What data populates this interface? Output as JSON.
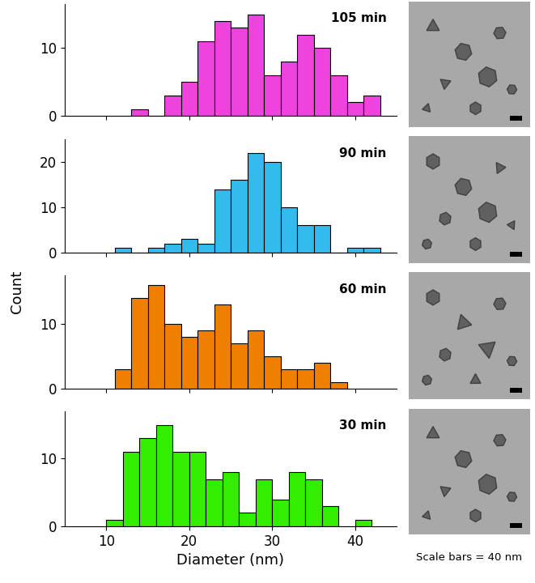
{
  "chart_data": [
    {
      "type": "histogram",
      "title": "105 min",
      "color": "#ee44dd",
      "bins": [
        13,
        15,
        17,
        19,
        21,
        23,
        25,
        27,
        29,
        31,
        33,
        35,
        37,
        39,
        41,
        43
      ],
      "counts": [
        1,
        0,
        3,
        5,
        11,
        14,
        13,
        15,
        6,
        8,
        12,
        10,
        6,
        2,
        3
      ],
      "xlim": [
        5,
        45
      ],
      "xticks": [
        10,
        20,
        30,
        40
      ],
      "ylim": [
        0,
        16.5
      ],
      "yticks": [
        0,
        10
      ],
      "tick_labels": "y"
    },
    {
      "type": "histogram",
      "title": "90 min",
      "color": "#33bbee",
      "bins": [
        11,
        13,
        15,
        17,
        19,
        21,
        23,
        25,
        27,
        29,
        31,
        33,
        35,
        37,
        39,
        41,
        43
      ],
      "counts": [
        1,
        0,
        1,
        2,
        3,
        2,
        14,
        16,
        22,
        20,
        10,
        6,
        6,
        0,
        1,
        1
      ],
      "xlim": [
        5,
        45
      ],
      "xticks": [
        10,
        20,
        30,
        40
      ],
      "ylim": [
        0,
        25
      ],
      "yticks": [
        0,
        10,
        20
      ],
      "tick_labels": "y"
    },
    {
      "type": "histogram",
      "title": "60 min",
      "color": "#ee7f00",
      "bins": [
        11,
        13,
        15,
        17,
        19,
        21,
        23,
        25,
        27,
        29,
        31,
        33,
        35,
        37,
        39
      ],
      "counts": [
        3,
        14,
        16,
        10,
        8,
        9,
        13,
        7,
        9,
        5,
        3,
        3,
        4,
        1
      ],
      "xlim": [
        5,
        45
      ],
      "xticks": [
        10,
        20,
        30,
        40
      ],
      "ylim": [
        0,
        17.5
      ],
      "yticks": [
        0,
        10
      ],
      "tick_labels": "y"
    },
    {
      "type": "histogram",
      "title": "30 min",
      "color": "#33ee00",
      "bins": [
        10,
        12,
        14,
        16,
        18,
        20,
        22,
        24,
        26,
        28,
        30,
        32,
        34,
        36,
        38,
        40,
        42
      ],
      "counts": [
        1,
        11,
        13,
        15,
        11,
        11,
        7,
        8,
        2,
        7,
        4,
        8,
        7,
        3,
        0,
        1
      ],
      "xlim": [
        5,
        45
      ],
      "xticks": [
        10,
        20,
        30,
        40
      ],
      "ylim": [
        0,
        17
      ],
      "yticks": [
        0,
        10
      ],
      "x_label": "Diameter (nm)",
      "annotation": "Scale bars = 40 nm"
    }
  ],
  "y_label": "Count"
}
